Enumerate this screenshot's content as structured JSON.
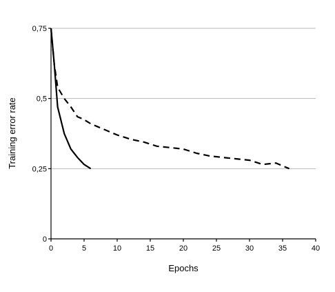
{
  "chart_data": {
    "type": "line",
    "title": "",
    "xlabel": "Epochs",
    "ylabel": "Training error rate",
    "xlim": [
      0,
      40
    ],
    "ylim": [
      0,
      0.75
    ],
    "xticks": [
      "0",
      "5",
      "10",
      "15",
      "20",
      "25",
      "30",
      "35",
      "40"
    ],
    "xtick_values": [
      0,
      5,
      10,
      15,
      20,
      25,
      30,
      35,
      40
    ],
    "yticks": [
      "0",
      "0,25",
      "0,5",
      "0,75"
    ],
    "ytick_values": [
      0,
      0.25,
      0.5,
      0.75
    ],
    "grid": "horizontal",
    "series": [
      {
        "style": "solid",
        "x": [
          0,
          0.5,
          1,
          2,
          3,
          4,
          5,
          6
        ],
        "y": [
          0.75,
          0.62,
          0.47,
          0.375,
          0.32,
          0.29,
          0.265,
          0.25
        ]
      },
      {
        "style": "dashed",
        "x": [
          0,
          0.5,
          1,
          2,
          3,
          4,
          5,
          6,
          7,
          8,
          9,
          10,
          12,
          14,
          16,
          18,
          20,
          22,
          24,
          26,
          28,
          30,
          32,
          34,
          35,
          36
        ],
        "y": [
          0.75,
          0.62,
          0.54,
          0.5,
          0.47,
          0.435,
          0.425,
          0.41,
          0.4,
          0.39,
          0.38,
          0.37,
          0.355,
          0.345,
          0.33,
          0.325,
          0.32,
          0.305,
          0.295,
          0.29,
          0.285,
          0.28,
          0.265,
          0.27,
          0.26,
          0.25
        ]
      }
    ]
  }
}
